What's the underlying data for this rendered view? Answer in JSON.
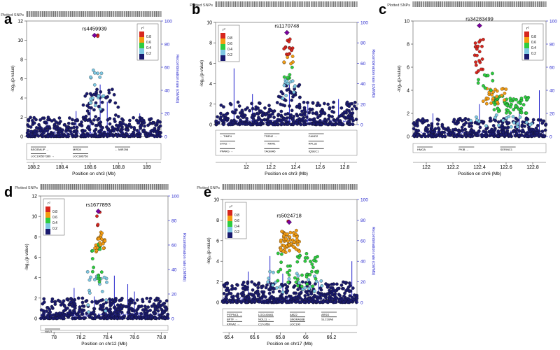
{
  "figure_title": "",
  "common": {
    "plotted_snps_label": "Plotted SNPs",
    "y_axis_label": "-log₁₀(p-value)",
    "y2_axis_label": "Recombination rate (cM/Mb)",
    "legend_r2_label": "r²",
    "legend_levels": [
      "0.8",
      "0.6",
      "0.4",
      "0.2"
    ],
    "legend_colors": [
      "#d7261e",
      "#f39c12",
      "#2ecc40",
      "#7ec8e3",
      "#1a1a6e"
    ],
    "lead_color": "#7b00a0",
    "recomb_color": "#2222cc",
    "background_dot_color": "#1a1a6e"
  },
  "chart_data": [
    {
      "panel_letter": "a",
      "type": "scatter",
      "lead_snp": "rs4459939",
      "lead_value": [
        188.63,
        10.5
      ],
      "xlabel": "Position on chr3 (Mb)",
      "xlim": [
        188.15,
        189.1
      ],
      "xticks": [
        188.2,
        188.4,
        188.6,
        188.8,
        189
      ],
      "ylim": [
        0,
        12
      ],
      "yticks": [
        0,
        2,
        4,
        6,
        8,
        10,
        12
      ],
      "y2lim": [
        0,
        100
      ],
      "y2ticks": [
        0,
        20,
        40,
        60,
        80,
        100
      ],
      "genes": [
        "BSGEMLIP →",
        "LOC100507389 →",
        "MIR28",
        "LOC386758",
        "← MIR298"
      ],
      "recomb_peaks": [
        [
          188.3,
          18
        ],
        [
          188.5,
          22
        ],
        [
          188.6,
          25
        ],
        [
          188.67,
          45
        ],
        [
          188.72,
          30
        ],
        [
          188.95,
          20
        ]
      ],
      "clusters": [
        {
          "color": "#1a1a6e",
          "n": 420,
          "x": [
            188.15,
            189.1
          ],
          "y": [
            0,
            2.0
          ]
        },
        {
          "color": "#1a1a6e",
          "n": 40,
          "x": [
            188.55,
            188.8
          ],
          "y": [
            2.0,
            5.0
          ]
        },
        {
          "color": "#7ec8e3",
          "n": 12,
          "x": [
            188.6,
            188.7
          ],
          "y": [
            2.8,
            4.5
          ]
        },
        {
          "color": "#7ec8e3",
          "n": 8,
          "x": [
            188.58,
            188.68
          ],
          "y": [
            5.0,
            7.0
          ]
        },
        {
          "color": "#d7261e",
          "n": 2,
          "x": [
            188.61,
            188.66
          ],
          "y": [
            10.2,
            10.6
          ]
        }
      ]
    },
    {
      "panel_letter": "b",
      "type": "scatter",
      "lead_snp": "rs1170748",
      "lead_value": [
        12.33,
        9.0
      ],
      "xlabel": "Position on chr3 (Mb)",
      "xlim": [
        11.75,
        12.9
      ],
      "xticks": [
        12,
        12.2,
        12.4,
        12.6,
        12.8
      ],
      "ylim": [
        0,
        10
      ],
      "yticks": [
        0,
        2,
        4,
        6,
        8,
        10
      ],
      "y2lim": [
        0,
        100
      ],
      "y2ticks": [
        0,
        20,
        40,
        60,
        80,
        100
      ],
      "genes": [
        "← TIMP4",
        "SYN2 →",
        "PPARG →",
        "TSEN2 →",
        "← MKR1",
        "TAGMA5",
        "CAND2",
        "RPL32",
        "IQSEC1"
      ],
      "recomb_peaks": [
        [
          11.9,
          55
        ],
        [
          12.05,
          30
        ],
        [
          12.35,
          40
        ],
        [
          12.5,
          20
        ],
        [
          12.75,
          25
        ]
      ],
      "clusters": [
        {
          "color": "#1a1a6e",
          "n": 420,
          "x": [
            11.75,
            12.9
          ],
          "y": [
            0,
            2.2
          ]
        },
        {
          "color": "#1a1a6e",
          "n": 25,
          "x": [
            12.25,
            12.45
          ],
          "y": [
            2.2,
            4.0
          ]
        },
        {
          "color": "#7ec8e3",
          "n": 14,
          "x": [
            12.28,
            12.4
          ],
          "y": [
            2.5,
            4.5
          ]
        },
        {
          "color": "#2ecc40",
          "n": 6,
          "x": [
            12.3,
            12.38
          ],
          "y": [
            4.5,
            6.0
          ]
        },
        {
          "color": "#f39c12",
          "n": 6,
          "x": [
            12.3,
            12.38
          ],
          "y": [
            5.8,
            6.8
          ]
        },
        {
          "color": "#d7261e",
          "n": 14,
          "x": [
            12.3,
            12.38
          ],
          "y": [
            6.8,
            8.5
          ]
        }
      ]
    },
    {
      "panel_letter": "c",
      "type": "scatter",
      "lead_snp": "rs34283499",
      "lead_value": [
        122.4,
        9.6
      ],
      "xlabel": "Position on chr6 (Mb)",
      "xlim": [
        121.9,
        122.9
      ],
      "xticks": [
        122,
        122.2,
        122.4,
        122.6,
        122.8
      ],
      "ylim": [
        0,
        10
      ],
      "yticks": [
        0,
        2,
        4,
        6,
        8,
        10
      ],
      "y2lim": [
        0,
        100
      ],
      "y2ticks": [
        0,
        20,
        40,
        60,
        80,
        100
      ],
      "genes": [
        "HMGA",
        "PKIB →",
        "SERINC1"
      ],
      "recomb_peaks": [
        [
          122.05,
          20
        ],
        [
          122.4,
          28
        ],
        [
          122.7,
          25
        ],
        [
          122.85,
          40
        ]
      ],
      "clusters": [
        {
          "color": "#1a1a6e",
          "n": 380,
          "x": [
            121.9,
            122.9
          ],
          "y": [
            0,
            1.6
          ]
        },
        {
          "color": "#7ec8e3",
          "n": 20,
          "x": [
            122.3,
            122.8
          ],
          "y": [
            0.8,
            2.0
          ]
        },
        {
          "color": "#2ecc40",
          "n": 60,
          "x": [
            122.5,
            122.78
          ],
          "y": [
            2.0,
            3.5
          ]
        },
        {
          "color": "#f39c12",
          "n": 25,
          "x": [
            122.42,
            122.6
          ],
          "y": [
            2.8,
            4.2
          ]
        },
        {
          "color": "#2ecc40",
          "n": 10,
          "x": [
            122.38,
            122.5
          ],
          "y": [
            4.0,
            5.5
          ]
        },
        {
          "color": "#d7261e",
          "n": 22,
          "x": [
            122.36,
            122.43
          ],
          "y": [
            5.5,
            8.5
          ]
        }
      ]
    },
    {
      "panel_letter": "d",
      "type": "scatter",
      "lead_snp": "rs1677893",
      "lead_value": [
        78.33,
        10.5
      ],
      "xlabel": "Position on chr12 (Mb)",
      "xlim": [
        77.9,
        78.85
      ],
      "xticks": [
        78,
        78.2,
        78.4,
        78.6,
        78.8
      ],
      "ylim": [
        0,
        12
      ],
      "yticks": [
        0,
        2,
        4,
        6,
        8,
        10,
        12
      ],
      "y2lim": [
        0,
        100
      ],
      "y2ticks": [
        0,
        20,
        40,
        60,
        80,
        100
      ],
      "genes": [
        "NAV3 →"
      ],
      "recomb_peaks": [
        [
          78.15,
          25
        ],
        [
          78.3,
          18
        ],
        [
          78.45,
          35
        ],
        [
          78.55,
          28
        ],
        [
          78.6,
          22
        ]
      ],
      "clusters": [
        {
          "color": "#1a1a6e",
          "n": 420,
          "x": [
            77.9,
            78.85
          ],
          "y": [
            0,
            2.0
          ]
        },
        {
          "color": "#7ec8e3",
          "n": 18,
          "x": [
            78.25,
            78.4
          ],
          "y": [
            0.5,
            5.0
          ]
        },
        {
          "color": "#2ecc40",
          "n": 18,
          "x": [
            78.28,
            78.38
          ],
          "y": [
            3.5,
            7.5
          ]
        },
        {
          "color": "#f39c12",
          "n": 22,
          "x": [
            78.3,
            78.38
          ],
          "y": [
            6.5,
            8.5
          ]
        },
        {
          "color": "#d7261e",
          "n": 4,
          "x": [
            78.32,
            78.35
          ],
          "y": [
            9.0,
            10.5
          ]
        }
      ]
    },
    {
      "panel_letter": "e",
      "type": "scatter",
      "lead_snp": "rs5024718",
      "lead_value": [
        65.87,
        7.8
      ],
      "xlabel": "Position on chr17 (Mb)",
      "xlim": [
        65.35,
        66.4
      ],
      "xticks": [
        65.4,
        65.6,
        65.8,
        66,
        66.2
      ],
      "ylim": [
        0,
        10
      ],
      "yticks": [
        0,
        2,
        4,
        6,
        8,
        10
      ],
      "y2lim": [
        0,
        100
      ],
      "y2ticks": [
        0,
        20,
        40,
        60,
        80,
        100
      ],
      "genes": [
        "PITPNC1 →",
        "BPTF →",
        "KPNA2 →",
        "LOC440461",
        "NOL11 →",
        "C17orf58",
        "AMZ2",
        "SNORA38B",
        "LOC100",
        "ARSG",
        "SLC16A6"
      ],
      "recomb_peaks": [
        [
          65.55,
          30
        ],
        [
          65.72,
          45
        ],
        [
          65.82,
          28
        ],
        [
          66.1,
          20
        ],
        [
          66.36,
          40
        ]
      ],
      "clusters": [
        {
          "color": "#1a1a6e",
          "n": 460,
          "x": [
            65.35,
            66.4
          ],
          "y": [
            0,
            2.0
          ]
        },
        {
          "color": "#7ec8e3",
          "n": 25,
          "x": [
            65.7,
            66.15
          ],
          "y": [
            0.8,
            3.0
          ]
        },
        {
          "color": "#2ecc40",
          "n": 45,
          "x": [
            65.78,
            66.1
          ],
          "y": [
            1.5,
            4.8
          ]
        },
        {
          "color": "#f39c12",
          "n": 60,
          "x": [
            65.8,
            65.95
          ],
          "y": [
            4.8,
            7.0
          ]
        },
        {
          "color": "#d7261e",
          "n": 1,
          "x": [
            65.86,
            65.88
          ],
          "y": [
            7.6,
            7.9
          ]
        }
      ]
    }
  ]
}
